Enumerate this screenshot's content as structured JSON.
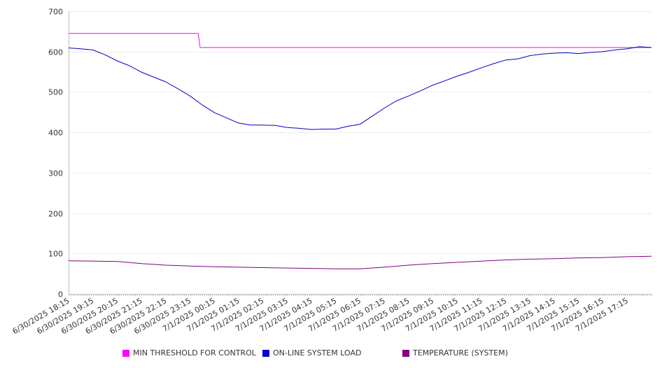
{
  "chart_data": {
    "type": "line",
    "ylim": [
      0,
      700
    ],
    "yticks": [
      0,
      100,
      200,
      300,
      400,
      500,
      600,
      700
    ],
    "x_range": [
      "6/30/2025 18:15",
      "7/1/2025 18:15"
    ],
    "xtick_labels": [
      "6/30/2025 18:15",
      "6/30/2025 19:15",
      "6/30/2025 20:15",
      "6/30/2025 21:15",
      "6/30/2025 22:15",
      "6/30/2025 23:15",
      "7/1/2025 00:15",
      "7/1/2025 01:15",
      "7/1/2025 02:15",
      "7/1/2025 03:15",
      "7/1/2025 04:15",
      "7/1/2025 05:15",
      "7/1/2025 06:15",
      "7/1/2025 07:15",
      "7/1/2025 08:15",
      "7/1/2025 09:15",
      "7/1/2025 10:15",
      "7/1/2025 11:15",
      "7/1/2025 12:15",
      "7/1/2025 13:15",
      "7/1/2025 14:15",
      "7/1/2025 15:15",
      "7/1/2025 16:15",
      "7/1/2025 17:15"
    ],
    "grid": true,
    "legend_position": "bottom",
    "series": [
      {
        "name": "MIN THRESHOLD FOR CONTROL",
        "color": "#ff00ff",
        "points": [
          [
            "6/30/2025 18:15",
            645
          ],
          [
            "6/30/2025 23:35",
            645
          ],
          [
            "6/30/2025 23:40",
            610
          ],
          [
            "7/1/2025 18:15",
            610
          ]
        ]
      },
      {
        "name": "ON-LINE SYSTEM LOAD",
        "color": "#0000cc",
        "points": [
          [
            "6/30/2025 18:15",
            609
          ],
          [
            "6/30/2025 18:45",
            607
          ],
          [
            "6/30/2025 19:15",
            604
          ],
          [
            "6/30/2025 19:45",
            592
          ],
          [
            "6/30/2025 20:15",
            577
          ],
          [
            "6/30/2025 20:45",
            565
          ],
          [
            "6/30/2025 21:15",
            549
          ],
          [
            "6/30/2025 21:45",
            537
          ],
          [
            "6/30/2025 22:15",
            525
          ],
          [
            "6/30/2025 22:45",
            508
          ],
          [
            "6/30/2025 23:15",
            490
          ],
          [
            "6/30/2025 23:45",
            468
          ],
          [
            "7/1/2025 00:15",
            449
          ],
          [
            "7/1/2025 00:45",
            436
          ],
          [
            "7/1/2025 01:15",
            423
          ],
          [
            "7/1/2025 01:45",
            418
          ],
          [
            "7/1/2025 02:15",
            418
          ],
          [
            "7/1/2025 02:45",
            417
          ],
          [
            "7/1/2025 03:15",
            412
          ],
          [
            "7/1/2025 03:45",
            410
          ],
          [
            "7/1/2025 04:15",
            407
          ],
          [
            "7/1/2025 04:45",
            408
          ],
          [
            "7/1/2025 05:15",
            408
          ],
          [
            "7/1/2025 05:45",
            415
          ],
          [
            "7/1/2025 06:15",
            420
          ],
          [
            "7/1/2025 06:45",
            440
          ],
          [
            "7/1/2025 07:15",
            460
          ],
          [
            "7/1/2025 07:45",
            478
          ],
          [
            "7/1/2025 08:15",
            490
          ],
          [
            "7/1/2025 08:45",
            503
          ],
          [
            "7/1/2025 09:15",
            517
          ],
          [
            "7/1/2025 09:45",
            528
          ],
          [
            "7/1/2025 10:15",
            539
          ],
          [
            "7/1/2025 10:45",
            549
          ],
          [
            "7/1/2025 11:15",
            560
          ],
          [
            "7/1/2025 11:45",
            570
          ],
          [
            "7/1/2025 12:15",
            579
          ],
          [
            "7/1/2025 12:45",
            582
          ],
          [
            "7/1/2025 13:15",
            590
          ],
          [
            "7/1/2025 13:45",
            594
          ],
          [
            "7/1/2025 14:15",
            596
          ],
          [
            "7/1/2025 14:45",
            597
          ],
          [
            "7/1/2025 15:15",
            595
          ],
          [
            "7/1/2025 15:45",
            598
          ],
          [
            "7/1/2025 16:15",
            600
          ],
          [
            "7/1/2025 16:45",
            604
          ],
          [
            "7/1/2025 17:15",
            607
          ],
          [
            "7/1/2025 17:45",
            612
          ],
          [
            "7/1/2025 18:15",
            610
          ]
        ]
      },
      {
        "name": "TEMPERATURE (SYSTEM)",
        "color": "#800080",
        "points": [
          [
            "6/30/2025 18:15",
            82
          ],
          [
            "6/30/2025 20:15",
            80
          ],
          [
            "6/30/2025 21:15",
            75
          ],
          [
            "6/30/2025 22:15",
            71
          ],
          [
            "6/30/2025 23:15",
            69
          ],
          [
            "7/1/2025 00:15",
            67
          ],
          [
            "7/1/2025 01:15",
            66
          ],
          [
            "7/1/2025 02:15",
            65
          ],
          [
            "7/1/2025 03:15",
            64
          ],
          [
            "7/1/2025 04:15",
            63
          ],
          [
            "7/1/2025 05:15",
            62
          ],
          [
            "7/1/2025 06:15",
            62
          ],
          [
            "7/1/2025 07:15",
            66
          ],
          [
            "7/1/2025 08:15",
            71
          ],
          [
            "7/1/2025 09:15",
            75
          ],
          [
            "7/1/2025 10:15",
            78
          ],
          [
            "7/1/2025 11:15",
            81
          ],
          [
            "7/1/2025 12:15",
            84
          ],
          [
            "7/1/2025 13:15",
            86
          ],
          [
            "7/1/2025 14:15",
            87
          ],
          [
            "7/1/2025 15:15",
            89
          ],
          [
            "7/1/2025 16:15",
            90
          ],
          [
            "7/1/2025 17:15",
            92
          ],
          [
            "7/1/2025 18:15",
            93
          ]
        ]
      }
    ]
  }
}
